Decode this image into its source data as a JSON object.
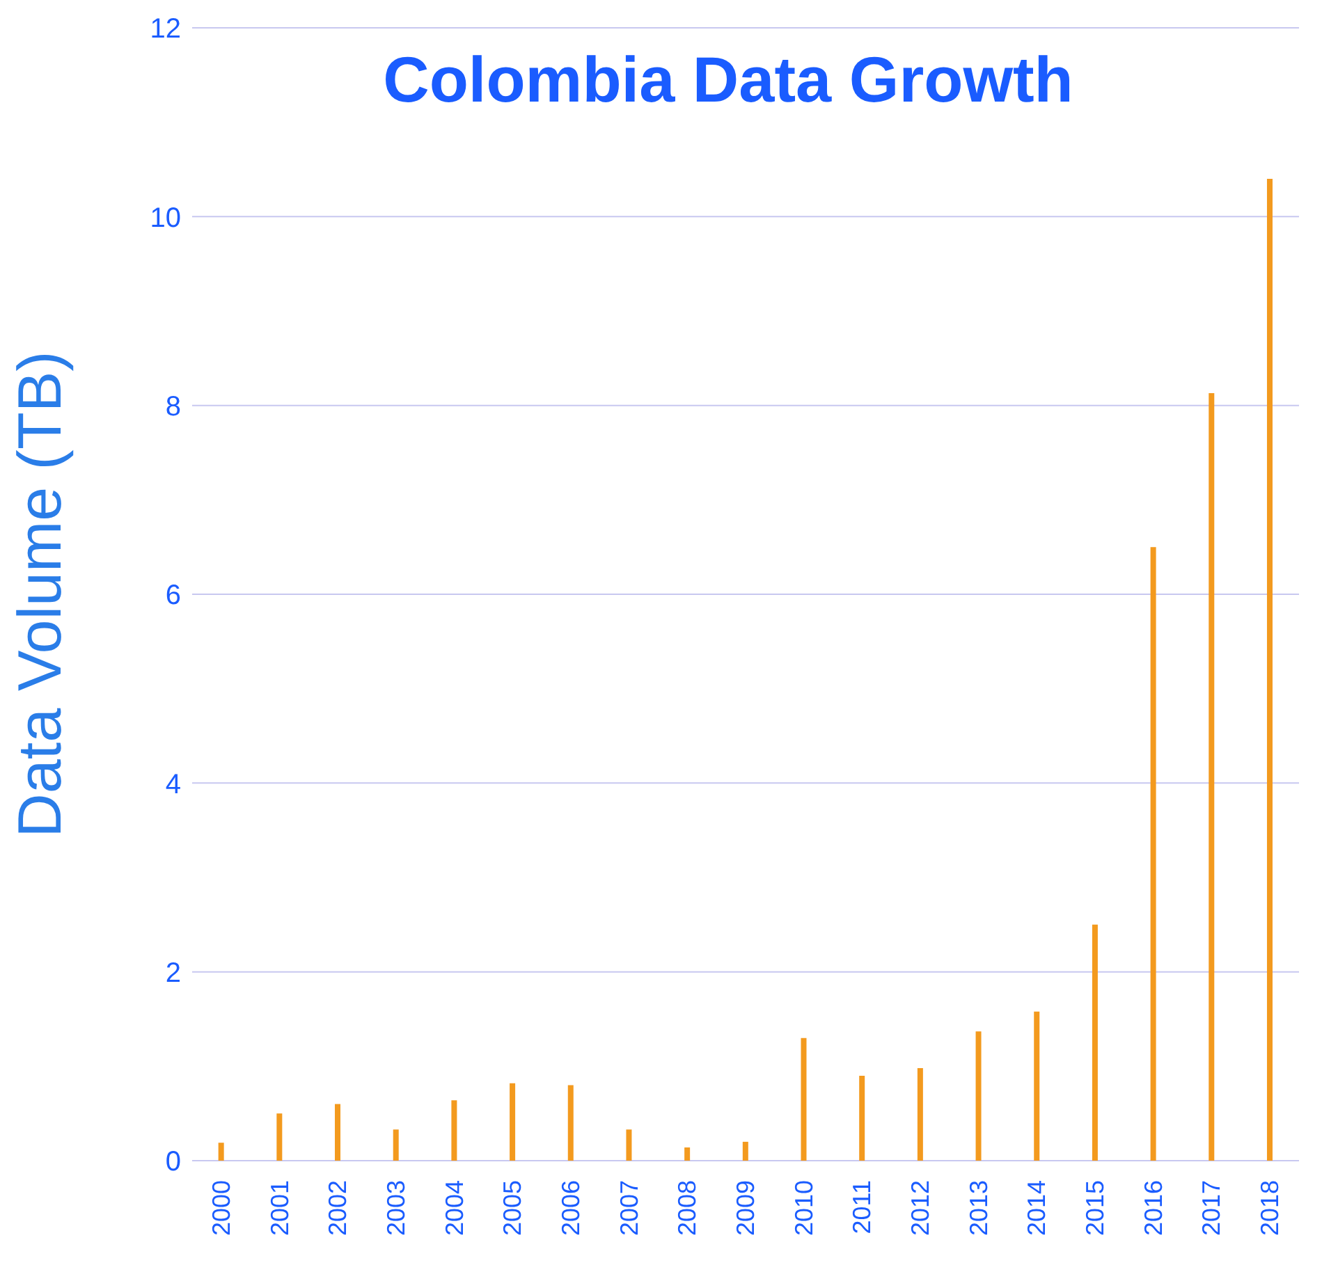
{
  "chart_data": {
    "type": "bar",
    "title": "Colombia Data Growth",
    "ylabel": "Data Volume (TB)",
    "categories": [
      "2000",
      "2001",
      "2002",
      "2003",
      "2004",
      "2005",
      "2006",
      "2007",
      "2008",
      "2009",
      "2010",
      "2011",
      "2012",
      "2013",
      "2014",
      "2015",
      "2016",
      "2017",
      "2018"
    ],
    "values": [
      0.19,
      0.5,
      0.6,
      0.33,
      0.64,
      0.82,
      0.8,
      0.33,
      0.14,
      0.2,
      1.3,
      0.9,
      0.98,
      1.37,
      1.58,
      2.5,
      6.5,
      8.13,
      10.4
    ],
    "color": "#f39a1e",
    "ylim": [
      0,
      12
    ],
    "yticks": [
      0,
      2,
      4,
      6,
      8,
      10,
      12
    ],
    "grid": "y"
  }
}
